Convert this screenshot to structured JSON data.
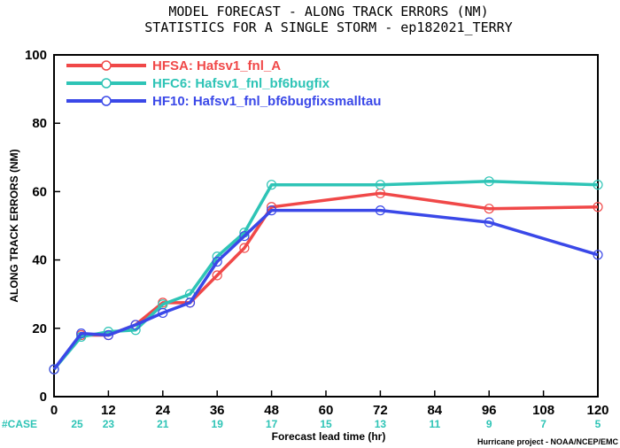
{
  "title_line1": "MODEL FORECAST - ALONG TRACK ERRORS (NM)",
  "title_line2": "STATISTICS FOR A SINGLE STORM - ep182021_TERRY",
  "credit": "Hurricane project - NOAA/NCEP/EMC",
  "case_label": "#CASE",
  "chart_data": {
    "type": "line",
    "xlabel": "Forecast lead time (hr)",
    "ylabel": "ALONG TRACK ERRORS (NM)",
    "xlim": [
      0,
      120
    ],
    "ylim": [
      0,
      100
    ],
    "xticks": [
      0,
      12,
      24,
      36,
      48,
      60,
      72,
      84,
      96,
      108,
      120
    ],
    "yticks": [
      0,
      20,
      40,
      60,
      80,
      100
    ],
    "grid": false,
    "legend_position": "top-left",
    "cases": [
      25,
      23,
      21,
      19,
      17,
      15,
      13,
      11,
      9,
      7,
      5
    ],
    "series": [
      {
        "name": "HFSA: Hafsv1_fnl_A",
        "color": "#f04848",
        "points": [
          [
            0,
            8
          ],
          [
            6,
            18
          ],
          [
            12,
            18
          ],
          [
            18,
            21
          ],
          [
            24,
            27.5
          ],
          [
            30,
            27.5
          ],
          [
            36,
            35.5
          ],
          [
            42,
            43.5
          ],
          [
            48,
            55.5
          ],
          [
            72,
            59.5
          ],
          [
            96,
            55
          ],
          [
            120,
            55.5
          ]
        ]
      },
      {
        "name": "HFC6: Hafsv1_fnl_bf6bugfix",
        "color": "#2ec4b6",
        "points": [
          [
            0,
            8
          ],
          [
            6,
            17.5
          ],
          [
            12,
            19
          ],
          [
            18,
            19.5
          ],
          [
            24,
            27
          ],
          [
            30,
            30
          ],
          [
            36,
            41
          ],
          [
            42,
            48
          ],
          [
            48,
            62
          ],
          [
            72,
            62
          ],
          [
            96,
            63
          ],
          [
            120,
            62
          ]
        ]
      },
      {
        "name": "HF10: Hafsv1_fnl_bf6bugfixsmalltau",
        "color": "#3a48e8",
        "points": [
          [
            0,
            8
          ],
          [
            6,
            18.5
          ],
          [
            12,
            18
          ],
          [
            18,
            21
          ],
          [
            24,
            24.5
          ],
          [
            30,
            27.5
          ],
          [
            36,
            39.5
          ],
          [
            42,
            47
          ],
          [
            48,
            54.5
          ],
          [
            72,
            54.5
          ],
          [
            96,
            51
          ],
          [
            120,
            41.5
          ]
        ]
      }
    ]
  }
}
